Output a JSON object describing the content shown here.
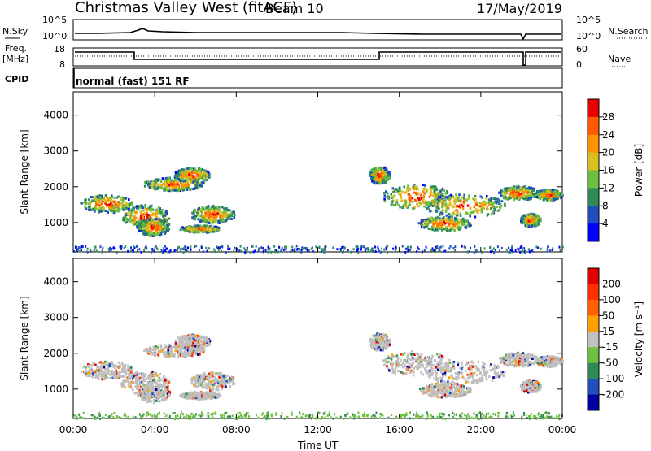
{
  "header": {
    "title": "Christmas Valley West (fitACF)",
    "beam": "Beam 10",
    "date": "17/May/2019"
  },
  "labels": {
    "nsky": "N.Sky",
    "nsearch": "N.Search",
    "freq": "Freq.",
    "freq_unit": "[MHz]",
    "nave": "Nave",
    "cpid": "CPID",
    "cpid_value": "normal (fast) 151 RF",
    "ylabel": "Slant Range [km]",
    "xlabel": "Time UT",
    "noise_ticks_left": [
      "10^5",
      "10^0"
    ],
    "noise_ticks_right": [
      "10^5",
      "10^0"
    ],
    "freq_ticks": [
      "18",
      "8"
    ],
    "nave_ticks": [
      "60",
      "0"
    ]
  },
  "chart_data": [
    {
      "type": "heatmap",
      "name": "power-panel",
      "ylabel": "Slant Range [km]",
      "yticks": [
        1000,
        2000,
        3000,
        4000
      ],
      "ylim": [
        180,
        4650
      ],
      "xlabel": "Time UT",
      "xticks": [
        "00:00",
        "04:00",
        "08:00",
        "12:00",
        "16:00",
        "20:00",
        "00:00"
      ],
      "xlim_hours": [
        0,
        24
      ],
      "colorbar": {
        "label": "Power [dB]",
        "ticks": [
          "4",
          "8",
          "12",
          "16",
          "20",
          "24",
          "28"
        ],
        "colors": [
          "#0000ff",
          "#1f4fbf",
          "#2e8b57",
          "#6bbf3f",
          "#d8c020",
          "#ff9400",
          "#ff5a00",
          "#e80000"
        ]
      }
    },
    {
      "type": "heatmap",
      "name": "velocity-panel",
      "ylabel": "Slant Range [km]",
      "yticks": [
        1000,
        2000,
        3000,
        4000
      ],
      "ylim": [
        180,
        4650
      ],
      "xlabel": "Time UT",
      "xticks": [
        "00:00",
        "04:00",
        "08:00",
        "12:00",
        "16:00",
        "20:00",
        "00:00"
      ],
      "xlim_hours": [
        0,
        24
      ],
      "colorbar": {
        "label": "Velocity [m s⁻¹]",
        "ticks": [
          "200",
          "100",
          "50",
          "15",
          "-15",
          "-50",
          "-100",
          "-200"
        ],
        "colors": [
          "#0000a0",
          "#2050c0",
          "#2e8b57",
          "#70c040",
          "#c0c0c0",
          "#ffa000",
          "#ff6000",
          "#ff3000",
          "#e00000"
        ]
      }
    }
  ],
  "colors": {
    "ground_scatter": "#bfbfbf",
    "axis": "#000000"
  }
}
